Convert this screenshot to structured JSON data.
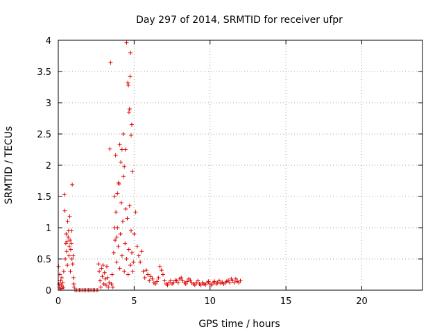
{
  "chart_data": {
    "type": "scatter",
    "title": "Day 297 of 2014, SRMTID for receiver ufpr",
    "xlabel": "GPS time / hours",
    "ylabel": "SRMTID / TECUs",
    "xlim": [
      0,
      24
    ],
    "ylim": [
      0,
      4
    ],
    "xticks": [
      0,
      5,
      10,
      15,
      20
    ],
    "xtick_labels": [
      "0",
      "5",
      "10",
      "15",
      "20"
    ],
    "yticks": [
      0,
      0.5,
      1,
      1.5,
      2,
      2.5,
      3,
      3.5,
      4
    ],
    "ytick_labels": [
      "0",
      "0.5",
      "1",
      "1.5",
      "2",
      "2.5",
      "3",
      "3.5",
      "4"
    ],
    "grid": true,
    "marker": "+",
    "series": [
      {
        "name": "SRMTID",
        "color": "#dd0000",
        "x": [
          0.02,
          0.05,
          0.08,
          0.1,
          0.13,
          0.16,
          0.2,
          0.23,
          0.26,
          0.3,
          0.33,
          0.36,
          0.4,
          0.43,
          0.46,
          0.5,
          0.52,
          0.55,
          0.58,
          0.6,
          0.62,
          0.65,
          0.68,
          0.7,
          0.72,
          0.75,
          0.78,
          0.8,
          0.82,
          0.85,
          0.88,
          0.9,
          0.92,
          0.95,
          0.98,
          1.0,
          1.02,
          1.05,
          1.1,
          1.2,
          1.3,
          1.4,
          1.5,
          1.6,
          1.7,
          1.8,
          1.9,
          2.0,
          2.1,
          2.2,
          2.3,
          2.4,
          2.5,
          2.6,
          2.65,
          2.7,
          2.75,
          2.8,
          2.85,
          2.9,
          2.95,
          3.0,
          3.05,
          3.1,
          3.15,
          3.2,
          3.25,
          3.3,
          3.35,
          3.4,
          3.45,
          3.5,
          3.55,
          3.6,
          3.65,
          3.7,
          3.75,
          3.8,
          3.85,
          3.9,
          3.95,
          4.0,
          4.05,
          4.1,
          4.15,
          4.2,
          4.25,
          4.3,
          4.35,
          4.4,
          4.45,
          4.5,
          4.55,
          4.6,
          4.65,
          4.7,
          4.75,
          4.8,
          4.85,
          4.9,
          4.95,
          3.72,
          3.78,
          3.85,
          3.9,
          3.97,
          4.05,
          4.12,
          4.2,
          4.28,
          4.35,
          4.42,
          4.5,
          4.58,
          4.62,
          4.66,
          4.7,
          4.73,
          4.76,
          4.8,
          4.84,
          4.88,
          5.0,
          5.1,
          5.2,
          5.3,
          5.4,
          5.5,
          5.6,
          5.7,
          5.8,
          5.9,
          6.0,
          6.1,
          6.2,
          6.3,
          6.4,
          6.5,
          6.6,
          6.7,
          6.8,
          6.9,
          7.0,
          7.1,
          7.2,
          7.3,
          7.4,
          7.5,
          7.6,
          7.7,
          7.8,
          7.9,
          8.0,
          8.1,
          8.2,
          8.3,
          8.4,
          8.5,
          8.6,
          8.7,
          8.8,
          8.9,
          9.0,
          9.1,
          9.2,
          9.3,
          9.4,
          9.5,
          9.6,
          9.7,
          9.8,
          9.9,
          10.0,
          10.1,
          10.2,
          10.3,
          10.4,
          10.5,
          10.6,
          10.7,
          10.8,
          10.9,
          11.0,
          11.1,
          11.2,
          11.3,
          11.4,
          11.5,
          11.6,
          11.7,
          11.8,
          11.9,
          12.0
        ],
        "y": [
          0.38,
          0.1,
          0.05,
          0.25,
          0.02,
          0.15,
          0.08,
          0.2,
          0.03,
          0.12,
          0.05,
          0.3,
          1.53,
          1.27,
          0.5,
          0.75,
          0.9,
          0.62,
          0.78,
          0.4,
          1.1,
          0.85,
          0.95,
          0.55,
          0.7,
          1.18,
          0.8,
          0.3,
          0.65,
          0.75,
          0.95,
          0.5,
          1.69,
          0.42,
          0.55,
          0.2,
          0.1,
          0.05,
          0.0,
          0.0,
          0.0,
          0.0,
          0.0,
          0.0,
          0.0,
          0.0,
          0.0,
          0.0,
          0.0,
          0.0,
          0.0,
          0.0,
          0.0,
          0.0,
          0.42,
          0.3,
          0.15,
          0.05,
          0.35,
          0.22,
          0.4,
          0.1,
          0.28,
          0.18,
          0.08,
          0.38,
          0.2,
          0.05,
          0.12,
          2.26,
          3.64,
          0.1,
          0.25,
          0.05,
          0.6,
          1.5,
          0.8,
          1.25,
          0.45,
          1.0,
          0.7,
          1.7,
          0.35,
          0.9,
          1.4,
          0.55,
          1.1,
          1.82,
          0.3,
          0.75,
          1.3,
          0.5,
          1.15,
          0.25,
          0.65,
          1.35,
          0.4,
          0.95,
          0.6,
          0.3,
          0.45,
          1.0,
          2.16,
          0.85,
          1.55,
          1.72,
          2.33,
          2.05,
          2.25,
          2.5,
          1.98,
          2.25,
          3.96,
          3.32,
          3.28,
          2.85,
          2.9,
          3.42,
          3.8,
          2.48,
          2.65,
          1.9,
          0.9,
          1.25,
          0.7,
          0.55,
          0.45,
          0.62,
          0.3,
          0.2,
          0.32,
          0.25,
          0.15,
          0.22,
          0.18,
          0.12,
          0.1,
          0.14,
          0.2,
          0.38,
          0.32,
          0.25,
          0.15,
          0.1,
          0.08,
          0.12,
          0.15,
          0.1,
          0.12,
          0.16,
          0.15,
          0.12,
          0.18,
          0.2,
          0.15,
          0.12,
          0.1,
          0.14,
          0.18,
          0.16,
          0.12,
          0.1,
          0.08,
          0.12,
          0.15,
          0.1,
          0.08,
          0.12,
          0.1,
          0.09,
          0.12,
          0.14,
          0.1,
          0.08,
          0.12,
          0.14,
          0.1,
          0.12,
          0.15,
          0.11,
          0.13,
          0.1,
          0.12,
          0.14,
          0.16,
          0.12,
          0.18,
          0.15,
          0.12,
          0.18,
          0.14,
          0.12,
          0.15
        ]
      }
    ]
  }
}
